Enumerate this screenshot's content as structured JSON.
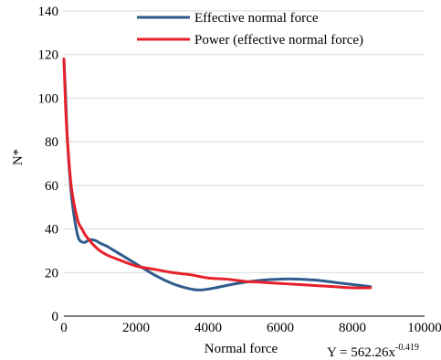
{
  "chart_data": {
    "type": "line",
    "title": "",
    "xlabel": "Normal force",
    "ylabel": "N*",
    "xlim": [
      0,
      10000
    ],
    "ylim": [
      0,
      140
    ],
    "x_ticks": [
      "0",
      "2000",
      "4000",
      "6000",
      "8000",
      "10000"
    ],
    "y_ticks": [
      "0",
      "20",
      "40",
      "60",
      "80",
      "100",
      "120",
      "140"
    ],
    "grid": "horizontal",
    "legend_position": "top-right",
    "annotation": {
      "prefix": "Y = 562.26x",
      "exponent": "-0.419"
    },
    "series": [
      {
        "name": "Effective normal force",
        "color": "#2f5b8c",
        "x": [
          0,
          50,
          100,
          200,
          300,
          400,
          500,
          600,
          700,
          800,
          900,
          1000,
          1200,
          1500,
          2000,
          2500,
          3000,
          3500,
          3800,
          4200,
          4800,
          5500,
          6000,
          6500,
          7000,
          7500,
          8000,
          8500
        ],
        "y": [
          118,
          100,
          80,
          57,
          44,
          36,
          34,
          34,
          35,
          35,
          34.5,
          33.5,
          32,
          29,
          24,
          19,
          15,
          12.5,
          12,
          13,
          15,
          16.5,
          17,
          17,
          16.5,
          15.5,
          14.5,
          13.5
        ]
      },
      {
        "name": "Power (effective normal force)",
        "color": "#e8202a",
        "x": [
          0,
          50,
          100,
          200,
          300,
          400,
          500,
          600,
          700,
          800,
          1000,
          1200,
          1500,
          2000,
          2500,
          3000,
          3500,
          4000,
          4500,
          5000,
          5500,
          6000,
          6500,
          7000,
          7500,
          8000,
          8500
        ],
        "y": [
          118,
          95,
          80,
          60,
          50,
          43,
          40,
          37,
          35,
          33,
          30,
          28,
          26,
          23,
          21.5,
          20,
          19,
          17.5,
          17,
          16,
          15.5,
          15,
          14.5,
          14,
          13.5,
          13,
          13
        ]
      }
    ]
  }
}
